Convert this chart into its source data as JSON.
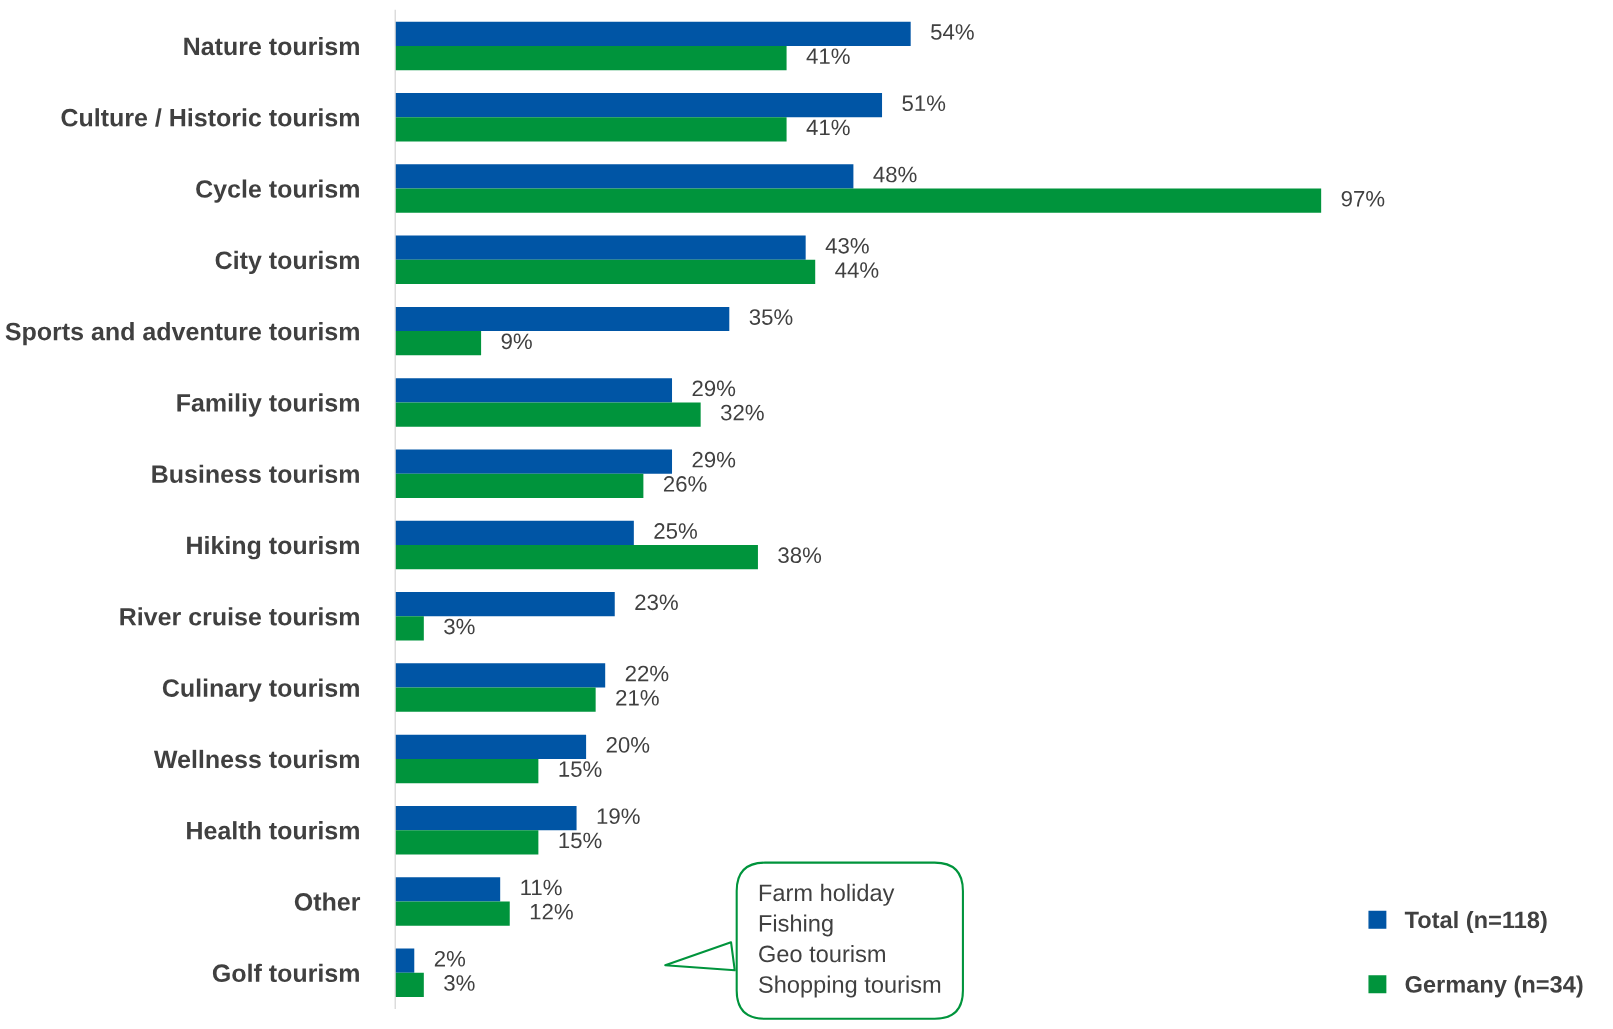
{
  "chart_data": {
    "type": "bar",
    "orientation": "horizontal",
    "categories": [
      "Nature tourism",
      "Culture / Historic tourism",
      "Cycle tourism",
      "City tourism",
      "Sports and adventure tourism",
      "Familiy tourism",
      "Business tourism",
      "Hiking tourism",
      "River cruise tourism",
      "Culinary tourism",
      "Wellness tourism",
      "Health tourism",
      "Other",
      "Golf tourism"
    ],
    "series": [
      {
        "name": "Total (n=118)",
        "color": "#0055a5",
        "values": [
          54,
          51,
          48,
          43,
          35,
          29,
          29,
          25,
          23,
          22,
          20,
          19,
          11,
          2
        ],
        "value_labels": [
          "54%",
          "51%",
          "48%",
          "43%",
          "35%",
          "29%",
          "29%",
          "25%",
          "23%",
          "22%",
          "20%",
          "19%",
          "11%",
          "2%"
        ]
      },
      {
        "name": "Germany (n=34)",
        "color": "#00943c",
        "values": [
          41,
          41,
          97,
          44,
          9,
          32,
          26,
          38,
          3,
          21,
          15,
          15,
          12,
          3
        ],
        "value_labels": [
          "41%",
          "41%",
          "97%",
          "44%",
          "9%",
          "32%",
          "26%",
          "38%",
          "3%",
          "21%",
          "15%",
          "15%",
          "12%",
          "3%"
        ]
      }
    ],
    "legend": "bottom right",
    "grid": false,
    "annotations": [
      "Farm holiday\nFishing\nGeo tourism\nShopping tourism"
    ]
  }
}
